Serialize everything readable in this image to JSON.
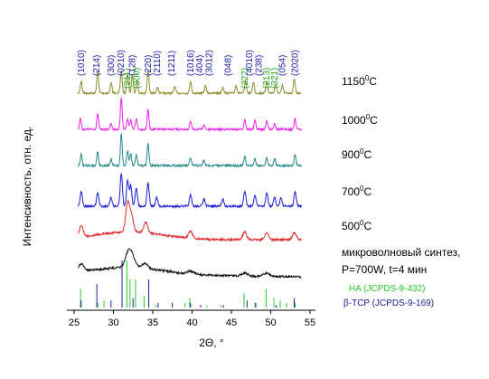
{
  "chart_data": {
    "type": "line",
    "xlabel": "2Θ, °",
    "ylabel": "Интенсивность, отн. ед.",
    "xlim": [
      25,
      55
    ],
    "xticks": [
      25,
      30,
      35,
      40,
      45,
      50,
      55
    ],
    "grid": false,
    "series": [
      {
        "name": "1150 °C",
        "label_main": "1150",
        "label_sup": "0",
        "label_unit": "C",
        "color": "#8c8c2a",
        "baseline": 0.96,
        "peaks": [
          [
            25.9,
            0.55
          ],
          [
            28.0,
            1.0
          ],
          [
            29.7,
            0.45
          ],
          [
            31.0,
            1.0
          ],
          [
            31.8,
            0.9
          ],
          [
            32.4,
            0.8
          ],
          [
            33.0,
            0.55
          ],
          [
            34.4,
            1.0
          ],
          [
            35.6,
            0.3
          ],
          [
            37.8,
            0.3
          ],
          [
            39.8,
            0.55
          ],
          [
            41.7,
            0.35
          ],
          [
            43.9,
            0.3
          ],
          [
            45.6,
            0.35
          ],
          [
            46.8,
            0.55
          ],
          [
            47.8,
            0.5
          ],
          [
            49.5,
            0.55
          ],
          [
            50.6,
            0.4
          ],
          [
            51.5,
            0.35
          ],
          [
            53.0,
            0.65
          ]
        ]
      },
      {
        "name": "1000 °C",
        "label_main": "1000",
        "label_sup": "0",
        "label_unit": "C",
        "color": "#ee22ee",
        "baseline": 0.96,
        "peaks": [
          [
            25.8,
            0.55
          ],
          [
            28.0,
            0.75
          ],
          [
            29.7,
            0.3
          ],
          [
            31.0,
            1.6
          ],
          [
            31.8,
            0.55
          ],
          [
            32.2,
            0.45
          ],
          [
            32.9,
            0.55
          ],
          [
            34.4,
            1.0
          ],
          [
            39.8,
            0.4
          ],
          [
            41.5,
            0.25
          ],
          [
            46.7,
            0.5
          ],
          [
            48.0,
            0.45
          ],
          [
            49.5,
            0.45
          ],
          [
            50.5,
            0.3
          ],
          [
            53.1,
            0.55
          ]
        ]
      },
      {
        "name": "900 °C",
        "label_main": "900",
        "label_sup": "0",
        "label_unit": "C",
        "color": "#22888a",
        "baseline": 0.96,
        "peaks": [
          [
            25.9,
            0.55
          ],
          [
            28.0,
            0.7
          ],
          [
            29.7,
            0.3
          ],
          [
            31.0,
            1.6
          ],
          [
            31.8,
            0.75
          ],
          [
            32.2,
            0.6
          ],
          [
            32.9,
            0.55
          ],
          [
            34.4,
            1.1
          ],
          [
            39.8,
            0.4
          ],
          [
            41.5,
            0.25
          ],
          [
            46.7,
            0.45
          ],
          [
            48.0,
            0.35
          ],
          [
            49.5,
            0.4
          ],
          [
            50.5,
            0.35
          ],
          [
            53.1,
            0.55
          ]
        ]
      },
      {
        "name": "700 °C",
        "label_main": "700",
        "label_sup": "0",
        "label_unit": "C",
        "color": "#1a1ad8",
        "baseline": 0.96,
        "peaks": [
          [
            25.9,
            0.6
          ],
          [
            28.0,
            0.55
          ],
          [
            29.7,
            0.35
          ],
          [
            31.0,
            1.35
          ],
          [
            31.8,
            1.05
          ],
          [
            32.2,
            0.85
          ],
          [
            32.9,
            0.75
          ],
          [
            34.4,
            0.95
          ],
          [
            35.5,
            0.35
          ],
          [
            39.8,
            0.45
          ],
          [
            41.5,
            0.3
          ],
          [
            43.9,
            0.3
          ],
          [
            46.7,
            0.6
          ],
          [
            48.0,
            0.45
          ],
          [
            49.5,
            0.55
          ],
          [
            50.5,
            0.35
          ],
          [
            51.3,
            0.35
          ],
          [
            53.1,
            0.6
          ]
        ]
      },
      {
        "name": "500 °C",
        "label_main": "500",
        "label_sup": "0",
        "label_unit": "C",
        "color": "#e02828",
        "baseline": 0.96,
        "peaks": [
          [
            25.9,
            0.5
          ],
          [
            31.8,
            1.25
          ],
          [
            32.3,
            0.7
          ],
          [
            34.1,
            0.45
          ],
          [
            39.8,
            0.3
          ],
          [
            46.7,
            0.35
          ],
          [
            49.5,
            0.3
          ],
          [
            53.0,
            0.3
          ]
        ]
      },
      {
        "name": "микроволновый синтез, P=700W, t=4 мин",
        "label_line1": "микроволновый синтез,",
        "label_line2": "P=700W, t=4 мин",
        "color": "#111111",
        "baseline": 0.96,
        "peaks": [
          [
            25.9,
            0.35
          ],
          [
            31.9,
            0.7
          ],
          [
            32.4,
            0.45
          ],
          [
            34.0,
            0.25
          ],
          [
            39.8,
            0.15
          ],
          [
            46.7,
            0.15
          ],
          [
            49.5,
            0.15
          ]
        ]
      }
    ],
    "reference_patterns": [
      {
        "name": "HA (JCPDS-9-432)",
        "color": "#22cc22",
        "lines": [
          [
            25.9,
            0.4
          ],
          [
            28.1,
            0.1
          ],
          [
            28.9,
            0.15
          ],
          [
            31.8,
            1.0
          ],
          [
            32.2,
            0.6
          ],
          [
            32.9,
            0.6
          ],
          [
            34.0,
            0.25
          ],
          [
            35.5,
            0.05
          ],
          [
            39.2,
            0.1
          ],
          [
            39.8,
            0.2
          ],
          [
            42.0,
            0.05
          ],
          [
            43.8,
            0.05
          ],
          [
            46.7,
            0.3
          ],
          [
            48.1,
            0.1
          ],
          [
            49.5,
            0.4
          ],
          [
            50.5,
            0.2
          ],
          [
            51.3,
            0.15
          ],
          [
            52.1,
            0.1
          ],
          [
            53.2,
            0.1
          ]
        ]
      },
      {
        "name": "β-TCP (JCPDS-9-169)",
        "color": "#1a1a99",
        "lines": [
          [
            25.8,
            0.15
          ],
          [
            27.8,
            0.5
          ],
          [
            29.6,
            0.15
          ],
          [
            31.0,
            1.0
          ],
          [
            32.4,
            0.2
          ],
          [
            34.4,
            0.6
          ],
          [
            35.6,
            0.1
          ],
          [
            37.4,
            0.1
          ],
          [
            39.7,
            0.1
          ],
          [
            41.0,
            0.05
          ],
          [
            43.9,
            0.05
          ],
          [
            46.9,
            0.15
          ],
          [
            48.0,
            0.1
          ],
          [
            50.6,
            0.05
          ],
          [
            52.9,
            0.2
          ]
        ]
      }
    ],
    "peak_labels": [
      {
        "text": "(1010)",
        "x": 25.9,
        "color": "#1a1aaa"
      },
      {
        "text": "(214)",
        "x": 27.9,
        "color": "#1a1aaa"
      },
      {
        "text": "(300)",
        "x": 29.7,
        "color": "#1a1aaa"
      },
      {
        "text": "(0210)",
        "x": 31.0,
        "color": "#1a1aaa"
      },
      {
        "text": "(211)",
        "x": 31.8,
        "color": "#22aa22"
      },
      {
        "text": "(128)",
        "x": 32.4,
        "color": "#1a1aaa"
      },
      {
        "text": "(300)",
        "x": 33.0,
        "color": "#22aa22"
      },
      {
        "text": "(220)",
        "x": 34.4,
        "color": "#1a1aaa"
      },
      {
        "text": "(2110)",
        "x": 35.6,
        "color": "#1a1aaa"
      },
      {
        "text": "(1211)",
        "x": 37.4,
        "color": "#1a1aaa"
      },
      {
        "text": "(1016)",
        "x": 39.8,
        "color": "#1a1aaa"
      },
      {
        "text": "(404)",
        "x": 41.0,
        "color": "#1a1aaa"
      },
      {
        "text": "(3012)",
        "x": 42.2,
        "color": "#1a1aaa"
      },
      {
        "text": "(048)",
        "x": 44.6,
        "color": "#1a1aaa"
      },
      {
        "text": "(222)",
        "x": 46.7,
        "color": "#22aa22"
      },
      {
        "text": "(4010)",
        "x": 47.3,
        "color": "#1a1aaa"
      },
      {
        "text": "(238)",
        "x": 48.5,
        "color": "#1a1aaa"
      },
      {
        "text": "(213)",
        "x": 49.5,
        "color": "#22aa22"
      },
      {
        "text": "(321)",
        "x": 50.5,
        "color": "#22aa22"
      },
      {
        "text": "(054)",
        "x": 51.5,
        "color": "#1a1aaa"
      },
      {
        "text": "(2020)",
        "x": 53.1,
        "color": "#1a1aaa"
      }
    ]
  }
}
